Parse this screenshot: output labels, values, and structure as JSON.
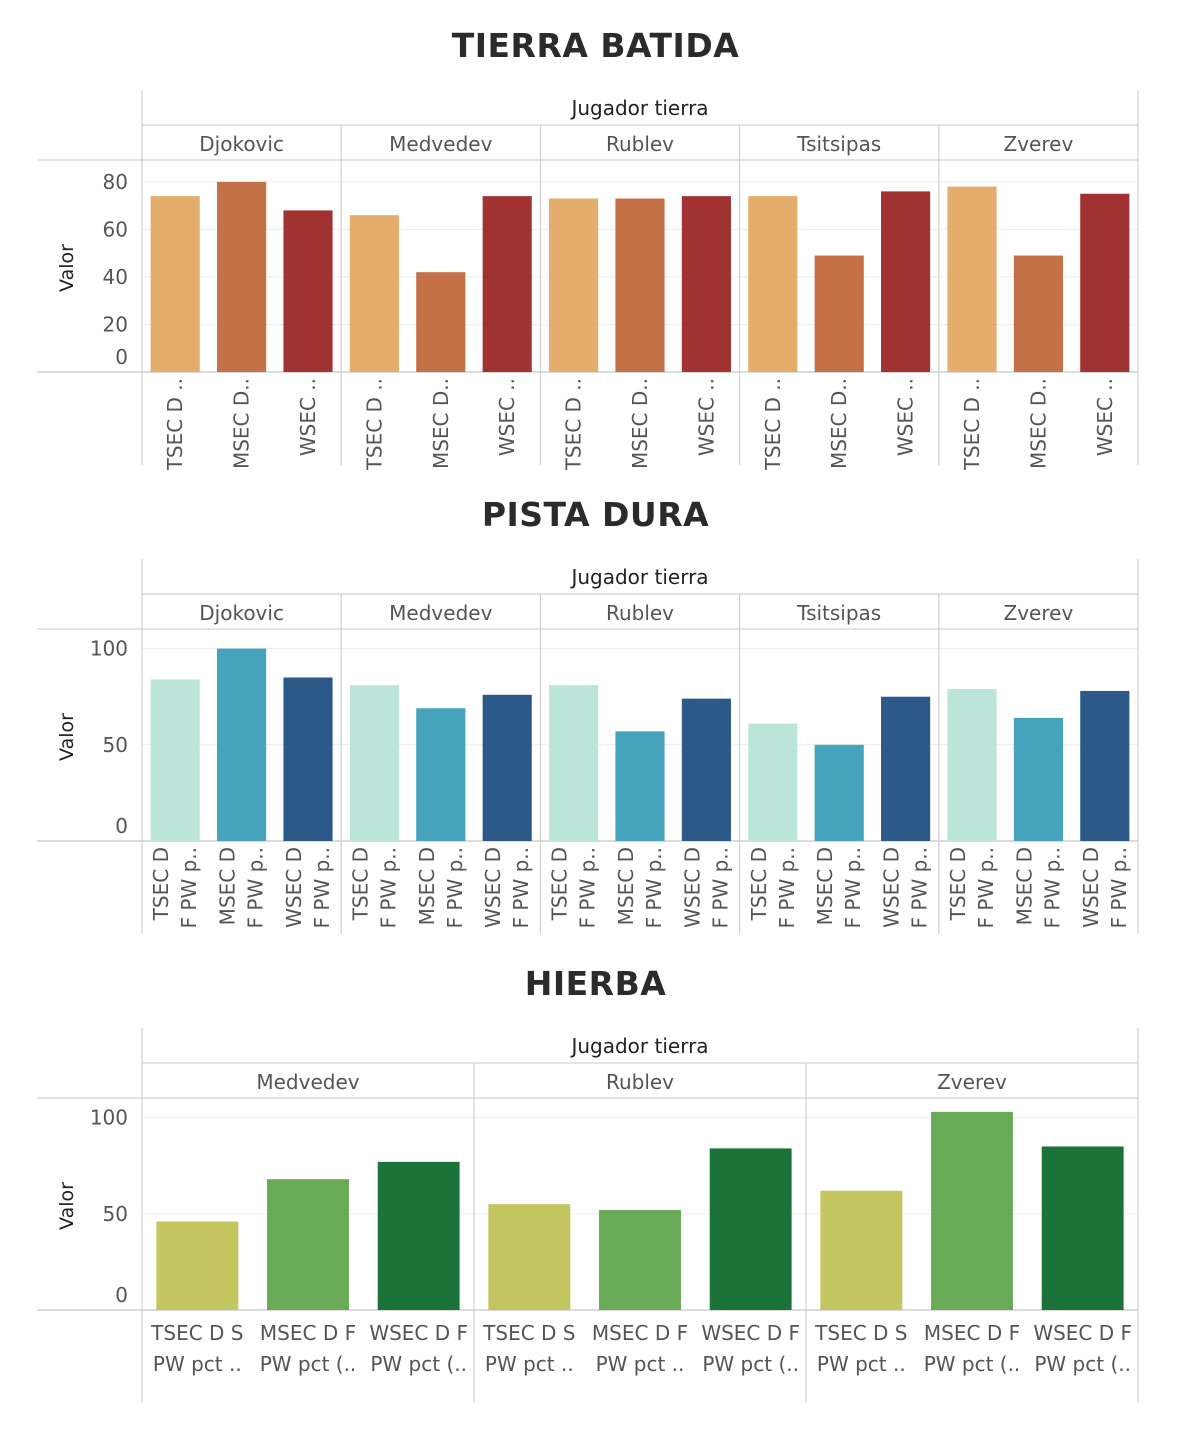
{
  "chart_data": [
    {
      "type": "bar",
      "title": "TIERRA BATIDA",
      "ylabel": "Valor",
      "column_header": "Jugador tierra",
      "ylim": [
        0,
        85
      ],
      "yticks": [
        0,
        20,
        40,
        60,
        80
      ],
      "grid": true,
      "colors": {
        "TSEC": "#e5ad6b",
        "MSEC": "#c47147",
        "WSEC": "#a03332"
      },
      "groups": [
        {
          "name": "Djokovic",
          "bars": [
            {
              "series": "TSEC",
              "label": [
                "TSEC D .."
              ],
              "value": 74
            },
            {
              "series": "MSEC",
              "label": [
                "MSEC D.."
              ],
              "value": 80
            },
            {
              "series": "WSEC",
              "label": [
                "WSEC .."
              ],
              "value": 68
            }
          ]
        },
        {
          "name": "Medvedev",
          "bars": [
            {
              "series": "TSEC",
              "label": [
                "TSEC D .."
              ],
              "value": 66
            },
            {
              "series": "MSEC",
              "label": [
                "MSEC D.."
              ],
              "value": 42
            },
            {
              "series": "WSEC",
              "label": [
                "WSEC .."
              ],
              "value": 74
            }
          ]
        },
        {
          "name": "Rublev",
          "bars": [
            {
              "series": "TSEC",
              "label": [
                "TSEC D .."
              ],
              "value": 73
            },
            {
              "series": "MSEC",
              "label": [
                "MSEC D.."
              ],
              "value": 73
            },
            {
              "series": "WSEC",
              "label": [
                "WSEC .."
              ],
              "value": 74
            }
          ]
        },
        {
          "name": "Tsitsipas",
          "bars": [
            {
              "series": "TSEC",
              "label": [
                "TSEC D .."
              ],
              "value": 74
            },
            {
              "series": "MSEC",
              "label": [
                "MSEC D.."
              ],
              "value": 49
            },
            {
              "series": "WSEC",
              "label": [
                "WSEC .."
              ],
              "value": 76
            }
          ]
        },
        {
          "name": "Zverev",
          "bars": [
            {
              "series": "TSEC",
              "label": [
                "TSEC D .."
              ],
              "value": 78
            },
            {
              "series": "MSEC",
              "label": [
                "MSEC D.."
              ],
              "value": 49
            },
            {
              "series": "WSEC",
              "label": [
                "WSEC .."
              ],
              "value": 75
            }
          ]
        }
      ]
    },
    {
      "type": "bar",
      "title": "PISTA DURA",
      "ylabel": "Valor",
      "column_header": "Jugador tierra",
      "ylim": [
        0,
        105
      ],
      "yticks": [
        0,
        50,
        100
      ],
      "grid": true,
      "colors": {
        "TSEC": "#bce5da",
        "MSEC": "#45a3bb",
        "WSEC": "#2c5987"
      },
      "groups": [
        {
          "name": "Djokovic",
          "bars": [
            {
              "series": "TSEC",
              "label": [
                "TSEC D",
                "F PW p.."
              ],
              "value": 84
            },
            {
              "series": "MSEC",
              "label": [
                "MSEC D",
                "F PW p.."
              ],
              "value": 100
            },
            {
              "series": "WSEC",
              "label": [
                "WSEC D",
                "F PW p.."
              ],
              "value": 85
            }
          ]
        },
        {
          "name": "Medvedev",
          "bars": [
            {
              "series": "TSEC",
              "label": [
                "TSEC D",
                "F PW p.."
              ],
              "value": 81
            },
            {
              "series": "MSEC",
              "label": [
                "MSEC D",
                "F PW p.."
              ],
              "value": 69
            },
            {
              "series": "WSEC",
              "label": [
                "WSEC D",
                "F PW p.."
              ],
              "value": 76
            }
          ]
        },
        {
          "name": "Rublev",
          "bars": [
            {
              "series": "TSEC",
              "label": [
                "TSEC D",
                "F PW p.."
              ],
              "value": 81
            },
            {
              "series": "MSEC",
              "label": [
                "MSEC D",
                "F PW p.."
              ],
              "value": 57
            },
            {
              "series": "WSEC",
              "label": [
                "WSEC D",
                "F PW p.."
              ],
              "value": 74
            }
          ]
        },
        {
          "name": "Tsitsipas",
          "bars": [
            {
              "series": "TSEC",
              "label": [
                "TSEC D",
                "F PW p.."
              ],
              "value": 61
            },
            {
              "series": "MSEC",
              "label": [
                "MSEC D",
                "F PW p.."
              ],
              "value": 50
            },
            {
              "series": "WSEC",
              "label": [
                "WSEC D",
                "F PW p.."
              ],
              "value": 75
            }
          ]
        },
        {
          "name": "Zverev",
          "bars": [
            {
              "series": "TSEC",
              "label": [
                "TSEC D",
                "F PW p.."
              ],
              "value": 79
            },
            {
              "series": "MSEC",
              "label": [
                "MSEC D",
                "F PW p.."
              ],
              "value": 64
            },
            {
              "series": "WSEC",
              "label": [
                "WSEC D",
                "F PW p.."
              ],
              "value": 78
            }
          ]
        }
      ]
    },
    {
      "type": "bar",
      "title": "HIERBA",
      "ylabel": "Valor",
      "column_header": "Jugador tierra",
      "ylim": [
        0,
        105
      ],
      "yticks": [
        0,
        50,
        100
      ],
      "grid": true,
      "colors": {
        "TSEC": "#c3c65e",
        "MSEC": "#68aa56",
        "WSEC": "#1c733a"
      },
      "groups": [
        {
          "name": "Medvedev",
          "bars": [
            {
              "series": "TSEC",
              "label": [
                "TSEC D S",
                "PW pct .."
              ],
              "value": 46
            },
            {
              "series": "MSEC",
              "label": [
                "MSEC D F",
                "PW pct (.."
              ],
              "value": 68
            },
            {
              "series": "WSEC",
              "label": [
                "WSEC D F",
                "PW pct (.."
              ],
              "value": 77
            }
          ]
        },
        {
          "name": "Rublev",
          "bars": [
            {
              "series": "TSEC",
              "label": [
                "TSEC D S",
                "PW pct .."
              ],
              "value": 55
            },
            {
              "series": "MSEC",
              "label": [
                "MSEC D F",
                "PW pct .."
              ],
              "value": 52
            },
            {
              "series": "WSEC",
              "label": [
                "WSEC D F",
                "PW pct (.."
              ],
              "value": 84
            }
          ]
        },
        {
          "name": "Zverev",
          "bars": [
            {
              "series": "TSEC",
              "label": [
                "TSEC D S",
                "PW pct .."
              ],
              "value": 62
            },
            {
              "series": "MSEC",
              "label": [
                "MSEC D F",
                "PW pct (.."
              ],
              "value": 103
            },
            {
              "series": "WSEC",
              "label": [
                "WSEC D F",
                "PW pct (.."
              ],
              "value": 85
            }
          ]
        }
      ]
    }
  ]
}
